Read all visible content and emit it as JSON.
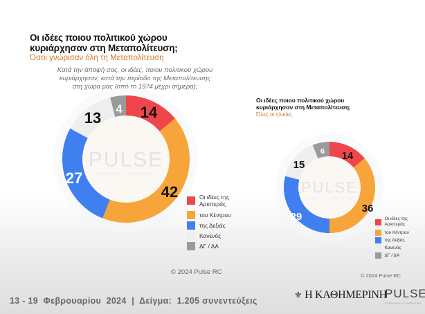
{
  "left_panel": {
    "title": "Οι ιδέες ποιου πολιτικού χώρου κυριάρχησαν στη Μεταπολίτευση;",
    "title_line1": "Οι ιδέες ποιου πολιτικού χώρου",
    "title_line2": "κυριάρχησαν στη Μεταπολίτευση;",
    "subtitle": "Όσοι γνώρισαν όλη τη Μεταπολίτευση",
    "question_line1": "Κατά την άποψή σας, οι ιδέες, ποιου πολιτικού χώρου",
    "question_line2": "κυριάρχησαν, κατά την περίοδο της Μεταπολίτευσης",
    "question_line3": "στη χώρα μας (από το 1974 μέχρι σήμερα);",
    "copyright": "© 2024 Pulse RC"
  },
  "right_panel": {
    "title_line1": "Οι ιδέες ποιου πολιτικού χώρου",
    "title_line2": "κυριάρχησαν στη Μεταπολίτευση;",
    "subtitle": "Όλες οι ηλικίες",
    "copyright": "© 2024 Pulse RC"
  },
  "watermark": {
    "text": "PULSE",
    "tagline": "RESEARCH & CONSULTING"
  },
  "legend": [
    {
      "label_line1": "Οι ιδέες της",
      "label_line2": "Αριστεράς",
      "color": "#f0464b"
    },
    {
      "label_line1": "του Κέντρου",
      "label_line2": "",
      "color": "#f7a43a"
    },
    {
      "label_line1": "της Δεξιάς",
      "label_line2": "",
      "color": "#3f7ff0"
    },
    {
      "label_line1": "Κανενός",
      "label_line2": "",
      "color": "#eeeeee"
    },
    {
      "label_line1": "ΔΓ / ΔΑ",
      "label_line2": "",
      "color": "#9a9a9a"
    }
  ],
  "chart_data": [
    {
      "type": "pie",
      "variant": "donut",
      "title": "Οι ιδέες ποιου πολιτικού χώρου κυριάρχησαν στη Μεταπολίτευση;",
      "subtitle": "Όσοι γνώρισαν όλη τη Μεταπολίτευση",
      "categories": [
        "Οι ιδέες της Αριστεράς",
        "του Κέντρου",
        "της Δεξιάς",
        "Κανενός",
        "ΔΓ / ΔΑ"
      ],
      "values": [
        14,
        42,
        27,
        13,
        4
      ],
      "unit": "%",
      "legend": "right"
    },
    {
      "type": "pie",
      "variant": "donut",
      "title": "Οι ιδέες ποιου πολιτικού χώρου κυριάρχησαν στη Μεταπολίτευση;",
      "subtitle": "Όλες οι ηλικίες",
      "categories": [
        "Οι ιδέες της Αριστεράς",
        "του Κέντρου",
        "της Δεξιάς",
        "Κανενός",
        "ΔΓ / ΔΑ"
      ],
      "values": [
        14,
        36,
        29,
        15,
        6
      ],
      "unit": "%",
      "legend": "right"
    }
  ],
  "footer": {
    "dates_sample": "13 - 19  Φεβρουαρίου  2024  |  Δείγμα:  1.205 συνεντεύξεις",
    "newspaper": "Η ΚΑΘΗΜΕΡΙΝΗ",
    "pulse_logo": "PULSE",
    "pulse_tagline": "RESEARCH & CONSULTING"
  }
}
